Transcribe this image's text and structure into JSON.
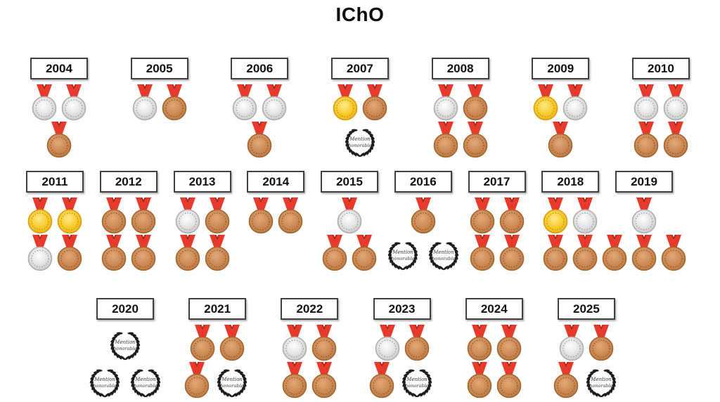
{
  "title": "IChO",
  "honorable_mention_label": "Mention honorable",
  "colors": {
    "gold": "#f2c31d",
    "silver": "#d9d9d9",
    "bronze": "#c5834f",
    "ribbon_red": "#e8392b",
    "wreath_black": "#1c1c1c",
    "year_box_border": "#404040",
    "background": "#ffffff"
  },
  "rows": [
    {
      "years": [
        {
          "year": "2004",
          "medals": [
            [
              "silver",
              "silver"
            ],
            [
              "bronze"
            ]
          ]
        },
        {
          "year": "2005",
          "medals": [
            [
              "silver",
              "bronze"
            ]
          ]
        },
        {
          "year": "2006",
          "medals": [
            [
              "silver",
              "silver"
            ],
            [
              "bronze"
            ]
          ]
        },
        {
          "year": "2007",
          "medals": [
            [
              "gold",
              "bronze"
            ],
            [
              "hm"
            ]
          ]
        },
        {
          "year": "2008",
          "medals": [
            [
              "silver",
              "bronze"
            ],
            [
              "bronze",
              "bronze"
            ]
          ]
        },
        {
          "year": "2009",
          "medals": [
            [
              "gold",
              "silver"
            ],
            [
              "bronze"
            ]
          ]
        },
        {
          "year": "2010",
          "medals": [
            [
              "silver",
              "silver"
            ],
            [
              "bronze",
              "bronze"
            ]
          ]
        }
      ]
    },
    {
      "years": [
        {
          "year": "2011",
          "medals": [
            [
              "gold",
              "gold"
            ],
            [
              "silver",
              "bronze"
            ]
          ]
        },
        {
          "year": "2012",
          "medals": [
            [
              "bronze",
              "bronze"
            ],
            [
              "bronze",
              "bronze"
            ]
          ]
        },
        {
          "year": "2013",
          "medals": [
            [
              "silver",
              "bronze"
            ],
            [
              "bronze",
              "bronze"
            ]
          ]
        },
        {
          "year": "2014",
          "medals": [
            [
              "bronze",
              "bronze"
            ]
          ]
        },
        {
          "year": "2015",
          "medals": [
            [
              "silver"
            ],
            [
              "bronze",
              "bronze"
            ]
          ]
        },
        {
          "year": "2016",
          "medals": [
            [
              "bronze"
            ],
            [
              "hm",
              "hm"
            ]
          ]
        },
        {
          "year": "2017",
          "medals": [
            [
              "bronze",
              "bronze"
            ],
            [
              "bronze",
              "bronze"
            ]
          ]
        },
        {
          "year": "2018",
          "medals": [
            [
              "gold",
              "silver"
            ],
            [
              "bronze",
              "bronze"
            ]
          ]
        },
        {
          "year": "2019",
          "medals": [
            [
              "silver"
            ],
            [
              "bronze",
              "bronze",
              "bronze"
            ]
          ]
        }
      ]
    },
    {
      "years": [
        {
          "year": "2020",
          "medals": [
            [
              "hm"
            ],
            [
              "hm",
              "hm"
            ]
          ]
        },
        {
          "year": "2021",
          "medals": [
            [
              "bronze",
              "bronze"
            ],
            [
              "bronze",
              "hm"
            ]
          ]
        },
        {
          "year": "2022",
          "medals": [
            [
              "silver",
              "bronze"
            ],
            [
              "bronze",
              "bronze"
            ]
          ]
        },
        {
          "year": "2023",
          "medals": [
            [
              "silver",
              "bronze"
            ],
            [
              "bronze",
              "hm"
            ]
          ]
        },
        {
          "year": "2024",
          "medals": [
            [
              "bronze",
              "bronze"
            ],
            [
              "bronze",
              "bronze"
            ]
          ]
        },
        {
          "year": "2025",
          "medals": [
            [
              "silver",
              "bronze"
            ],
            [
              "bronze",
              "hm"
            ]
          ]
        }
      ]
    }
  ],
  "chart_data": {
    "type": "table",
    "title": "IChO",
    "categories": [
      "2004",
      "2005",
      "2006",
      "2007",
      "2008",
      "2009",
      "2010",
      "2011",
      "2012",
      "2013",
      "2014",
      "2015",
      "2016",
      "2017",
      "2018",
      "2019",
      "2020",
      "2021",
      "2022",
      "2023",
      "2024",
      "2025"
    ],
    "series": [
      {
        "name": "gold",
        "values": [
          0,
          0,
          0,
          1,
          0,
          1,
          0,
          2,
          0,
          0,
          0,
          0,
          0,
          0,
          1,
          0,
          0,
          0,
          0,
          0,
          0,
          0
        ]
      },
      {
        "name": "silver",
        "values": [
          2,
          1,
          2,
          0,
          1,
          1,
          2,
          1,
          0,
          1,
          0,
          1,
          0,
          0,
          1,
          1,
          0,
          0,
          1,
          1,
          0,
          1
        ]
      },
      {
        "name": "bronze",
        "values": [
          1,
          1,
          1,
          1,
          3,
          1,
          2,
          1,
          4,
          3,
          2,
          2,
          1,
          4,
          2,
          3,
          0,
          3,
          3,
          2,
          4,
          2
        ]
      },
      {
        "name": "honorable_mention",
        "values": [
          0,
          0,
          0,
          1,
          0,
          0,
          0,
          0,
          0,
          0,
          0,
          0,
          2,
          0,
          0,
          0,
          3,
          1,
          0,
          1,
          0,
          1
        ]
      }
    ]
  }
}
